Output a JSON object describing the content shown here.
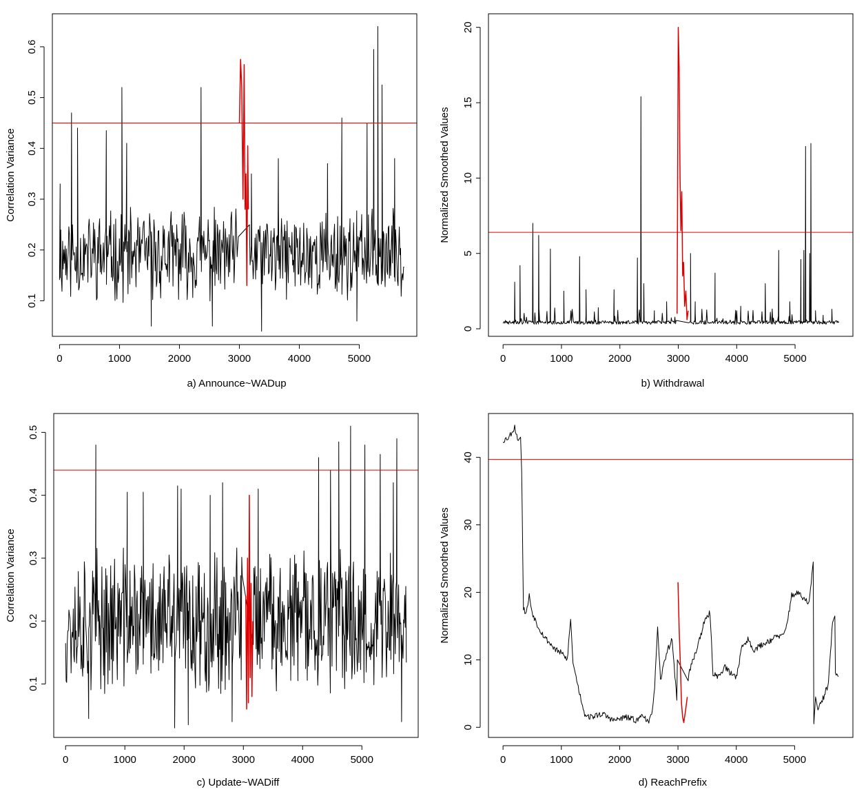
{
  "chart_data": [
    {
      "id": "a",
      "type": "line",
      "caption": "a) Announce~WADup",
      "xlabel": "",
      "ylabel": "Correlation Variance",
      "xlim": [
        -120,
        5960
      ],
      "ylim": [
        0.03,
        0.665
      ],
      "xticks": [
        0,
        1000,
        2000,
        3000,
        4000,
        5000
      ],
      "yticks": [
        0.1,
        0.2,
        0.3,
        0.4,
        0.5,
        0.6
      ],
      "threshold": 0.45,
      "series": [
        {
          "name": "variance",
          "color": "#000000",
          "style": "spiky",
          "x_start": 0,
          "x_end": 5750,
          "n": 560,
          "base": 0.19,
          "amp": 0.07,
          "seed": 11,
          "spikes": [
            [
              10,
              0.33
            ],
            [
              200,
              0.47
            ],
            [
              300,
              0.44
            ],
            [
              780,
              0.435
            ],
            [
              1040,
              0.52
            ],
            [
              1120,
              0.41
            ],
            [
              2360,
              0.52
            ],
            [
              3200,
              0.35
            ],
            [
              3650,
              0.38
            ],
            [
              4470,
              0.37
            ],
            [
              4710,
              0.46
            ],
            [
              5130,
              0.45
            ],
            [
              5240,
              0.595
            ],
            [
              5310,
              0.64
            ],
            [
              5380,
              0.525
            ],
            [
              5590,
              0.38
            ],
            [
              4960,
              0.06
            ],
            [
              2550,
              0.05
            ],
            [
              3370,
              0.04
            ],
            [
              1530,
              0.05
            ]
          ]
        },
        {
          "name": "event",
          "color": "#dd0000",
          "style": "points",
          "x": [
            3000,
            3020,
            3040,
            3060,
            3080,
            3095,
            3110,
            3125,
            3140,
            3150
          ],
          "y": [
            0.45,
            0.575,
            0.52,
            0.3,
            0.565,
            0.28,
            0.35,
            0.13,
            0.405,
            0.28
          ]
        }
      ]
    },
    {
      "id": "b",
      "type": "line",
      "caption": "b) Withdrawal",
      "xlabel": "",
      "ylabel": "Normalized Smoothed Values",
      "xlim": [
        -250,
        5990
      ],
      "ylim": [
        -0.5,
        20.9
      ],
      "xticks": [
        0,
        1000,
        2000,
        3000,
        4000,
        5000
      ],
      "yticks": [
        0,
        5,
        10,
        15,
        20
      ],
      "threshold": 6.4,
      "series": [
        {
          "name": "withdrawal",
          "color": "#000000",
          "style": "baseline-spikes",
          "x_start": 0,
          "x_end": 5750,
          "n": 560,
          "base": 0.3,
          "amp": 0.25,
          "seed": 23,
          "spikes": [
            [
              200,
              3.1
            ],
            [
              290,
              4.2
            ],
            [
              510,
              7.0
            ],
            [
              610,
              6.2
            ],
            [
              810,
              5.3
            ],
            [
              1040,
              2.5
            ],
            [
              1310,
              4.8
            ],
            [
              1420,
              2.6
            ],
            [
              1630,
              1.4
            ],
            [
              1900,
              2.6
            ],
            [
              2300,
              4.7
            ],
            [
              2360,
              15.4
            ],
            [
              2410,
              3.0
            ],
            [
              2590,
              1.2
            ],
            [
              2800,
              1.8
            ],
            [
              3210,
              5.0
            ],
            [
              3290,
              1.8
            ],
            [
              3630,
              3.7
            ],
            [
              4070,
              1.5
            ],
            [
              4490,
              3.0
            ],
            [
              4720,
              5.2
            ],
            [
              4910,
              1.8
            ],
            [
              5100,
              4.6
            ],
            [
              5150,
              5.2
            ],
            [
              5180,
              12.1
            ],
            [
              5250,
              5.0
            ],
            [
              5270,
              12.3
            ],
            [
              5350,
              1.2
            ],
            [
              5480,
              0.9
            ],
            [
              5630,
              1.3
            ]
          ]
        },
        {
          "name": "event",
          "color": "#dd0000",
          "style": "points",
          "x": [
            2980,
            3000,
            3015,
            3030,
            3045,
            3060,
            3075,
            3090,
            3110,
            3130,
            3150,
            3170
          ],
          "y": [
            1.0,
            20.0,
            17.2,
            10.0,
            6.5,
            9.1,
            3.5,
            4.4,
            1.5,
            2.5,
            0.6,
            1.2
          ]
        }
      ]
    },
    {
      "id": "c",
      "type": "line",
      "caption": "c) Update~WADiff",
      "xlabel": "",
      "ylabel": "Correlation Variance",
      "xlim": [
        -200,
        5950
      ],
      "ylim": [
        0.015,
        0.53
      ],
      "xticks": [
        0,
        1000,
        2000,
        3000,
        4000,
        5000
      ],
      "yticks": [
        0.1,
        0.2,
        0.3,
        0.4,
        0.5
      ],
      "threshold": 0.44,
      "series": [
        {
          "name": "variance",
          "color": "#000000",
          "style": "spiky",
          "x_start": 0,
          "x_end": 5750,
          "n": 620,
          "base": 0.2,
          "amp": 0.09,
          "seed": 37,
          "spikes": [
            [
              510,
              0.48
            ],
            [
              1040,
              0.405
            ],
            [
              1310,
              0.405
            ],
            [
              1890,
              0.415
            ],
            [
              1950,
              0.41
            ],
            [
              2440,
              0.4
            ],
            [
              2650,
              0.42
            ],
            [
              3250,
              0.41
            ],
            [
              4270,
              0.46
            ],
            [
              4470,
              0.44
            ],
            [
              4610,
              0.485
            ],
            [
              4810,
              0.51
            ],
            [
              5050,
              0.48
            ],
            [
              5310,
              0.465
            ],
            [
              5590,
              0.49
            ],
            [
              5530,
              0.42
            ],
            [
              1840,
              0.03
            ],
            [
              2070,
              0.035
            ],
            [
              2810,
              0.04
            ],
            [
              5670,
              0.04
            ],
            [
              390,
              0.045
            ]
          ]
        },
        {
          "name": "event",
          "color": "#dd0000",
          "style": "points",
          "x": [
            3040,
            3055,
            3070,
            3085,
            3100,
            3115,
            3130,
            3145,
            3160
          ],
          "y": [
            0.24,
            0.06,
            0.3,
            0.07,
            0.4,
            0.11,
            0.26,
            0.08,
            0.2
          ]
        }
      ]
    },
    {
      "id": "d",
      "type": "line",
      "caption": "d) ReachPrefix",
      "xlabel": "",
      "ylabel": "Normalized Smoothed Values",
      "xlim": [
        -250,
        6000
      ],
      "ylim": [
        -1.5,
        46.5
      ],
      "xticks": [
        0,
        1000,
        2000,
        3000,
        4000,
        5000
      ],
      "yticks": [
        0,
        10,
        20,
        30,
        40
      ],
      "threshold": 39.7,
      "series": [
        {
          "name": "reach",
          "color": "#000000",
          "style": "smooth",
          "noise": 0.45,
          "seed": 53,
          "x": [
            0,
            100,
            200,
            260,
            300,
            320,
            350,
            400,
            450,
            500,
            600,
            700,
            800,
            900,
            1000,
            1100,
            1160,
            1200,
            1240,
            1300,
            1400,
            1500,
            1700,
            1900,
            2100,
            2300,
            2400,
            2500,
            2550,
            2600,
            2650,
            2700,
            2800,
            2900,
            2980,
            3000,
            3010,
            3100,
            3150,
            3200,
            3300,
            3450,
            3550,
            3600,
            3700,
            3800,
            3900,
            4000,
            4100,
            4200,
            4300,
            4500,
            4700,
            4800,
            4850,
            4950,
            5050,
            5150,
            5250,
            5320,
            5330,
            5360,
            5400,
            5500,
            5580,
            5650,
            5690,
            5700,
            5750
          ],
          "y": [
            42.5,
            43,
            44.5,
            42.5,
            43,
            38,
            17.5,
            17,
            19.5,
            17,
            15,
            13.5,
            12.5,
            11.5,
            11,
            10,
            16,
            9.5,
            8,
            5.5,
            2,
            1.5,
            2,
            1,
            1.5,
            1,
            2,
            0.5,
            2,
            6,
            14.5,
            7,
            11,
            13,
            4,
            16,
            20.5,
            6.5,
            6,
            8.5,
            11,
            15.5,
            17,
            8,
            7.5,
            9,
            8,
            7.5,
            12,
            13,
            11.5,
            12.5,
            13.5,
            13.5,
            14.5,
            19.5,
            20,
            19,
            18.5,
            24.5,
            0.5,
            4.5,
            2.5,
            4.5,
            6.5,
            15.5,
            16.5,
            8,
            7.5
          ]
        },
        {
          "name": "event",
          "color": "#dd0000",
          "style": "points",
          "x": [
            3000,
            3020,
            3040,
            3060,
            3080,
            3100,
            3130,
            3160
          ],
          "y": [
            21.5,
            14.5,
            9.5,
            3.5,
            1.5,
            0.7,
            2.5,
            4.5
          ]
        }
      ]
    }
  ]
}
